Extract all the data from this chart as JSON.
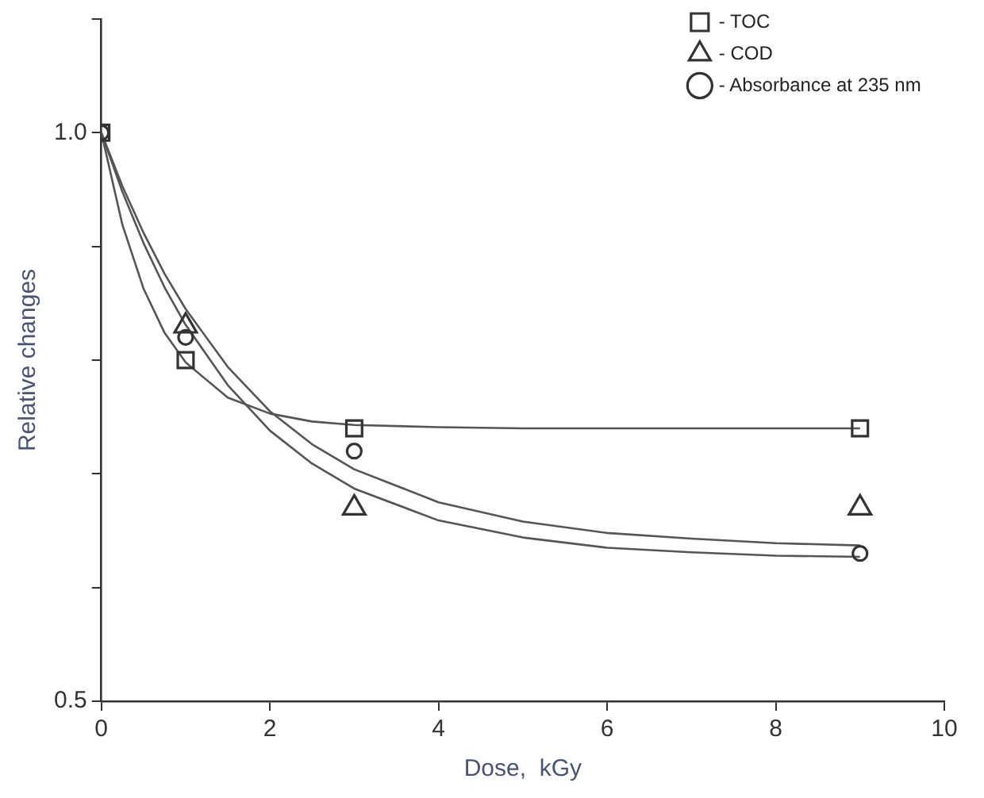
{
  "chart_data": {
    "type": "scatter",
    "xlabel": "Dose,  kGy",
    "ylabel": "Relative changes",
    "xlim": [
      0,
      10
    ],
    "xticks": [
      0,
      2,
      4,
      6,
      8,
      10
    ],
    "ylim": [
      0.5,
      1.1
    ],
    "yticks": [
      {
        "value": 0.5,
        "label": "0.5"
      },
      {
        "value": 0.6,
        "label": null
      },
      {
        "value": 0.7,
        "label": null
      },
      {
        "value": 0.8,
        "label": null
      },
      {
        "value": 0.9,
        "label": null
      },
      {
        "value": 1.0,
        "label": "1.0"
      },
      {
        "value": 1.1,
        "label": null
      }
    ],
    "grid": false,
    "legend": "top right",
    "series": [
      {
        "name": "- TOC",
        "marker": "square",
        "color": "#333333",
        "x": [
          0,
          1,
          3,
          9
        ],
        "values": [
          1.0,
          0.8,
          0.74,
          0.74
        ]
      },
      {
        "name": "- COD",
        "marker": "triangle",
        "color": "#333333",
        "x": [
          1,
          3,
          9
        ],
        "values": [
          0.83,
          0.67,
          0.67
        ]
      },
      {
        "name": "- Absorbance at 235 nm",
        "marker": "circle",
        "color": "#333333",
        "x": [
          0,
          1,
          3,
          9
        ],
        "values": [
          1.0,
          0.82,
          0.72,
          0.63
        ]
      },
      {
        "type": "line",
        "marker": "none",
        "line_style": "solid",
        "color": "#555555",
        "x": [
          0,
          0.25,
          0.5,
          0.75,
          1,
          1.5,
          2,
          2.5,
          3,
          4,
          5,
          6,
          7,
          8,
          9
        ],
        "values": [
          1.0,
          0.919,
          0.863,
          0.824,
          0.798,
          0.767,
          0.753,
          0.746,
          0.743,
          0.741,
          0.74,
          0.74,
          0.74,
          0.74,
          0.74
        ]
      },
      {
        "type": "line",
        "marker": "none",
        "line_style": "solid",
        "color": "#555555",
        "x": [
          0,
          0.25,
          0.5,
          0.75,
          1,
          1.5,
          2,
          2.5,
          3,
          4,
          5,
          6,
          7,
          8,
          9
        ],
        "values": [
          1.0,
          0.953,
          0.912,
          0.876,
          0.845,
          0.794,
          0.755,
          0.726,
          0.704,
          0.675,
          0.658,
          0.648,
          0.643,
          0.639,
          0.637
        ]
      },
      {
        "type": "line",
        "marker": "none",
        "line_style": "solid",
        "color": "#555555",
        "x": [
          0,
          0.25,
          0.5,
          0.75,
          1,
          1.5,
          2,
          2.5,
          3,
          4,
          5,
          6,
          7,
          8,
          9
        ],
        "values": [
          1.0,
          0.948,
          0.903,
          0.864,
          0.831,
          0.778,
          0.738,
          0.709,
          0.687,
          0.659,
          0.644,
          0.635,
          0.631,
          0.628,
          0.627
        ]
      }
    ]
  }
}
